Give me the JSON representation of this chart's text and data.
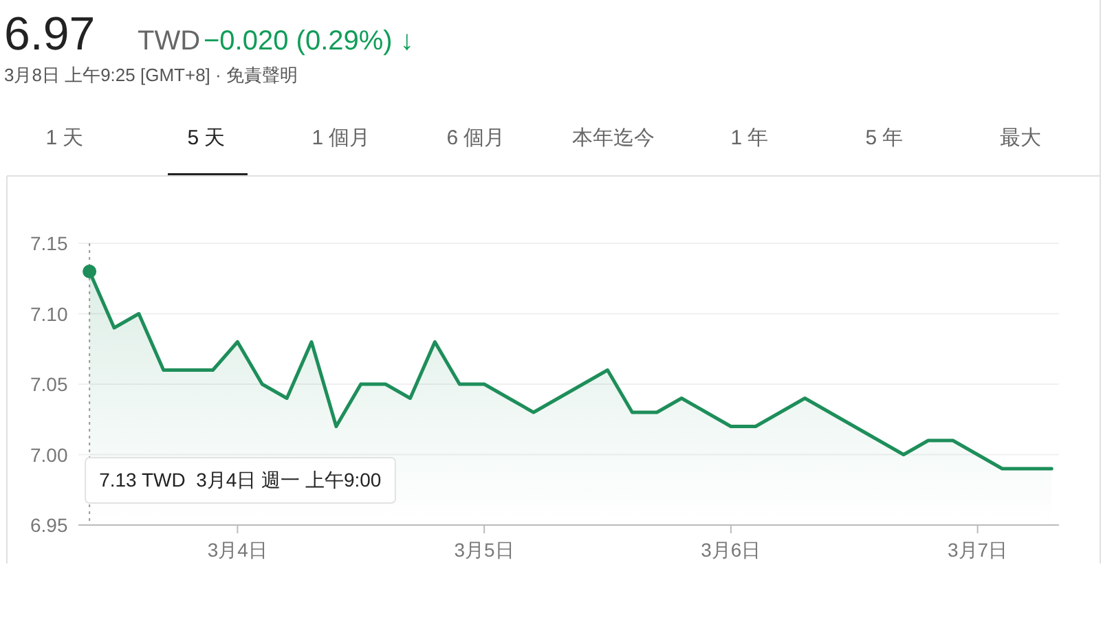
{
  "chart_data": {
    "type": "area",
    "title": "6.97",
    "subtitle": "3月8日 上午9:25 [GMT+8] · 免責聲明",
    "annotations": [
      "TWD",
      "−0.020 (0.29%) ↓",
      "1 天",
      "5 天",
      "1 個月",
      "6 個月",
      "本年迄今",
      "1 年",
      "5 年",
      "最大",
      "7.13 TWD  3月4日 週一 上午9:00"
    ],
    "categories": [
      null,
      null,
      null,
      null,
      null,
      null,
      "3月4日",
      null,
      null,
      null,
      null,
      null,
      null,
      null,
      null,
      null,
      "3月5日",
      null,
      null,
      null,
      null,
      null,
      null,
      null,
      null,
      null,
      "3月6日",
      null,
      null,
      null,
      null,
      null,
      null,
      null,
      null,
      null,
      "3月7日",
      null,
      null,
      null
    ],
    "series": [
      {
        "color": "#1e8e5a",
        "values": [
          7.13,
          7.09,
          7.1,
          7.06,
          7.06,
          7.06,
          7.08,
          7.05,
          7.04,
          7.08,
          7.02,
          7.05,
          7.05,
          7.04,
          7.08,
          7.05,
          7.05,
          7.04,
          7.03,
          7.04,
          7.05,
          7.06,
          7.03,
          7.03,
          7.04,
          7.03,
          7.02,
          7.02,
          7.03,
          7.04,
          7.03,
          7.02,
          7.01,
          7.0,
          7.01,
          7.01,
          7.0,
          6.99,
          6.99,
          6.99
        ]
      }
    ],
    "ylim": [
      6.95,
      7.15
    ],
    "yticks": [
      {
        "value": 6.95,
        "label": "6.95"
      },
      {
        "value": 7.0,
        "label": "7.00"
      },
      {
        "value": 7.05,
        "label": "7.05"
      },
      {
        "value": 7.1,
        "label": "7.10"
      },
      {
        "value": 7.15,
        "label": "7.15"
      }
    ],
    "grid": "y",
    "ref_lines": [
      {
        "axis": "x",
        "value": null,
        "label": null,
        "line_style": "dotted",
        "color": "#999999"
      }
    ]
  }
}
